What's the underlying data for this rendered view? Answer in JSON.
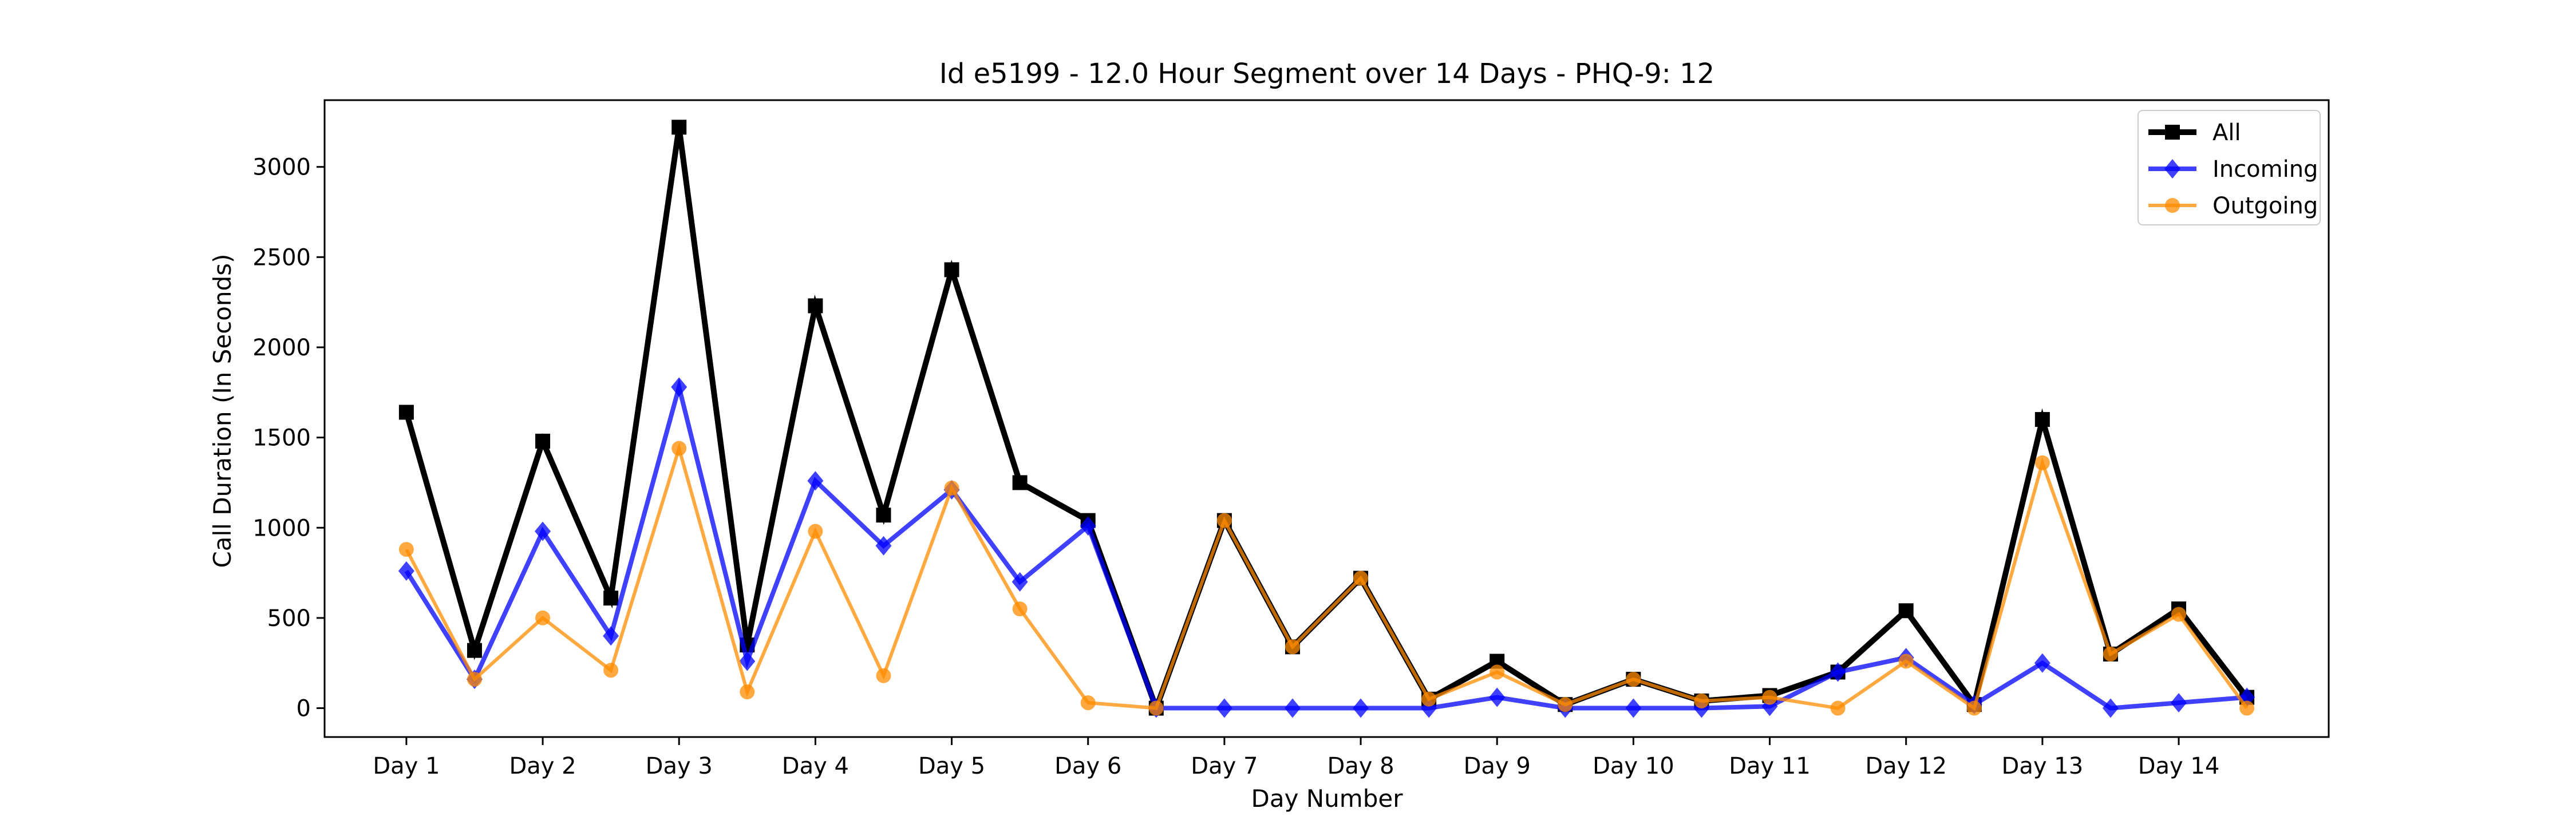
{
  "chart_data": {
    "type": "line",
    "title": "Id e5199 - 12.0 Hour Segment over 14 Days - PHQ-9: 12",
    "xlabel": "Day Number",
    "ylabel": "Call Duration (In Seconds)",
    "x": [
      1,
      1.5,
      2,
      2.5,
      3,
      3.5,
      4,
      4.5,
      5,
      5.5,
      6,
      6.5,
      7,
      7.5,
      8,
      8.5,
      9,
      9.5,
      10,
      10.5,
      11,
      11.5,
      12,
      12.5,
      13,
      13.5,
      14,
      14.5
    ],
    "xticks": [
      1,
      2,
      3,
      4,
      5,
      6,
      7,
      8,
      9,
      10,
      11,
      12,
      13,
      14
    ],
    "xtick_labels": [
      "Day 1",
      "Day 2",
      "Day 3",
      "Day 4",
      "Day 5",
      "Day 6",
      "Day 7",
      "Day 8",
      "Day 9",
      "Day 10",
      "Day 11",
      "Day 12",
      "Day 13",
      "Day 14"
    ],
    "yticks": [
      0,
      500,
      1000,
      1500,
      2000,
      2500,
      3000
    ],
    "xlim": [
      0.4,
      15.1
    ],
    "ylim": [
      -160,
      3370
    ],
    "grid": false,
    "legend": "top-right",
    "series": [
      {
        "name": "All",
        "color": "#000000",
        "marker": "square",
        "values": [
          1640,
          320,
          1480,
          610,
          3220,
          350,
          2230,
          1070,
          2430,
          1250,
          1040,
          0,
          1040,
          340,
          720,
          50,
          260,
          20,
          160,
          40,
          70,
          200,
          540,
          20,
          1600,
          300,
          550,
          60
        ]
      },
      {
        "name": "Incoming",
        "color": "#0000ff",
        "marker": "diamond",
        "values": [
          760,
          160,
          980,
          400,
          1780,
          260,
          1260,
          900,
          1210,
          700,
          1010,
          0,
          0,
          0,
          0,
          0,
          60,
          0,
          0,
          0,
          10,
          200,
          280,
          20,
          250,
          0,
          30,
          60
        ]
      },
      {
        "name": "Outgoing",
        "color": "#ff8c00",
        "marker": "circle",
        "values": [
          880,
          160,
          500,
          210,
          1440,
          90,
          980,
          180,
          1220,
          550,
          30,
          0,
          1040,
          340,
          720,
          50,
          200,
          20,
          160,
          40,
          60,
          0,
          260,
          0,
          1360,
          300,
          520,
          0
        ]
      }
    ]
  }
}
